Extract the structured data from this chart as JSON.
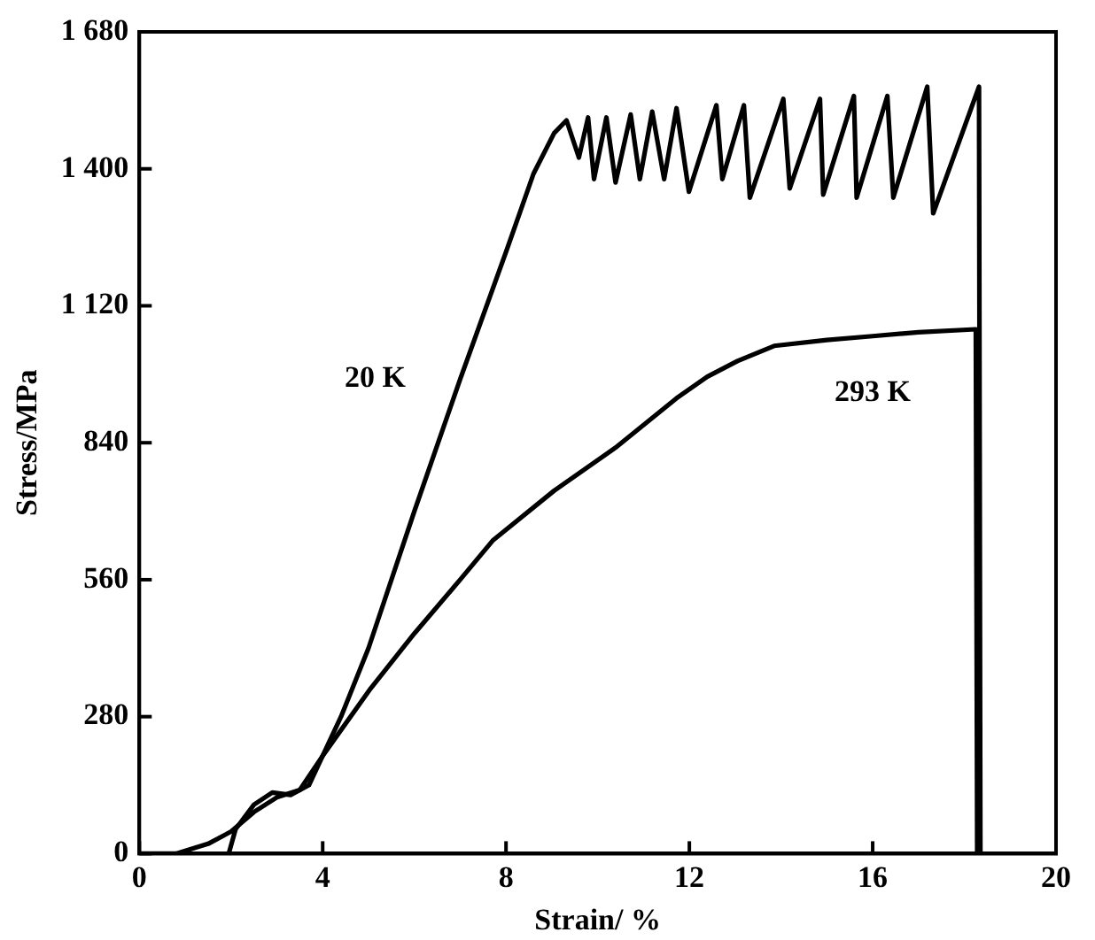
{
  "chart_data": {
    "type": "line",
    "xlabel": "Strain/ %",
    "ylabel": "Stress/MPa",
    "xlim": [
      0,
      20
    ],
    "xticks": [
      0,
      4,
      8,
      12,
      16,
      20
    ],
    "ylim": [
      0,
      1680
    ],
    "yticks": [
      0,
      280,
      560,
      840,
      {
        "value": 1120,
        "label": "1 120"
      },
      {
        "value": 1400,
        "label": "1 400"
      },
      {
        "value": 1680,
        "label": "1 680"
      }
    ],
    "grid": false,
    "legend": false,
    "marker": "none",
    "line_style": "solid",
    "series": [
      {
        "name": "20 K",
        "color": "#000000",
        "x": [
          1.95,
          2.1,
          2.5,
          2.9,
          3.3,
          3.7,
          4.0,
          4.4,
          5,
          6,
          7,
          8,
          8.6,
          9.05,
          9.32,
          9.59,
          9.79,
          9.92,
          10.19,
          10.39,
          10.72,
          10.92,
          11.19,
          11.45,
          11.72,
          11.99,
          12.59,
          12.72,
          13.19,
          13.32,
          14.05,
          14.19,
          14.85,
          14.92,
          15.59,
          15.65,
          16.32,
          16.45,
          17.19,
          17.32,
          18.32,
          18.35
        ],
        "values": [
          0,
          50,
          100,
          125,
          120,
          140,
          200,
          280,
          420,
          700,
          970,
          1230,
          1390,
          1473,
          1499,
          1423,
          1505,
          1379,
          1505,
          1372,
          1511,
          1379,
          1517,
          1379,
          1524,
          1353,
          1530,
          1379,
          1530,
          1341,
          1543,
          1360,
          1543,
          1347,
          1549,
          1341,
          1549,
          1341,
          1568,
          1309,
          1568,
          0
        ]
      },
      {
        "name": "293 K",
        "color": "#000000",
        "x": [
          0,
          0.8,
          1.5,
          2,
          2.5,
          3,
          3.5,
          4,
          5.05,
          6,
          7,
          7.72,
          9.05,
          10.39,
          11.72,
          12.39,
          13.05,
          13.85,
          15,
          16,
          17,
          18.25,
          18.28
        ],
        "values": [
          0,
          0,
          20,
          45,
          85,
          115,
          130,
          200,
          338,
          450,
          560,
          641,
          742,
          830,
          931,
          975,
          1007,
          1038,
          1050,
          1058,
          1066,
          1072,
          0
        ]
      }
    ]
  }
}
